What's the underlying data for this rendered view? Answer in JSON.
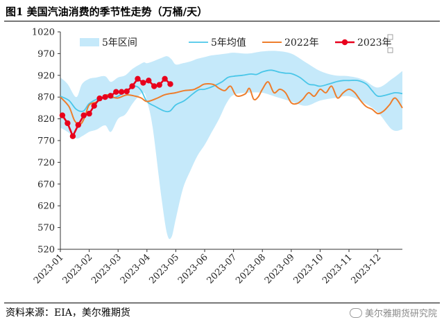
{
  "figure": {
    "title": "图1 美国汽油消费的季节性走势（万桶/天）",
    "source": "资料来源：EIA，美尔雅期货",
    "watermark": "美尔雅期货研究院"
  },
  "colors": {
    "band": "#c5e9fa",
    "avg": "#49c6e8",
    "y2022": "#ee7d2b",
    "y2023": "#e8001c",
    "axis": "#333333"
  },
  "chart_data": {
    "type": "line",
    "x_unit": "month (1 = 2023-01-01)",
    "ylim": [
      520,
      1020
    ],
    "yticks": [
      520,
      570,
      620,
      670,
      720,
      770,
      820,
      870,
      920,
      970,
      1020
    ],
    "ytick_labels": [
      "520",
      "570",
      "620",
      "670",
      "720",
      "770",
      "820",
      "870",
      "920",
      "970",
      "1020"
    ],
    "xlim": [
      1,
      12.85
    ],
    "xticks": [
      1,
      2,
      3,
      4,
      5,
      6,
      7,
      8,
      9,
      10,
      11,
      12
    ],
    "xtick_labels": [
      "2023-01",
      "2023-02",
      "2023-03",
      "2023-04",
      "2023-05",
      "2023-06",
      "2023-07",
      "2023-08",
      "2023-09",
      "2023-10",
      "2023-11",
      "2023-12"
    ],
    "legend": [
      "5年区间",
      "5年均值",
      "2022年",
      "2023年"
    ],
    "band": {
      "name": "5年区间",
      "x": [
        1.0,
        1.25,
        1.55,
        1.75,
        2.0,
        2.25,
        2.55,
        2.75,
        3.0,
        3.25,
        3.5,
        3.75,
        3.9,
        4.0,
        4.2,
        4.5,
        4.7,
        4.85,
        5.0,
        5.25,
        5.5,
        5.75,
        6.0,
        6.25,
        6.5,
        6.75,
        7.0,
        7.5,
        8.0,
        8.5,
        9.0,
        9.5,
        10.0,
        10.5,
        11.0,
        11.5,
        12.0,
        12.5,
        12.85
      ],
      "low": [
        800,
        790,
        775,
        780,
        790,
        795,
        805,
        790,
        820,
        830,
        855,
        875,
        880,
        862,
        800,
        640,
        555,
        548,
        590,
        660,
        700,
        735,
        760,
        790,
        820,
        855,
        875,
        880,
        880,
        870,
        860,
        850,
        862,
        868,
        872,
        858,
        835,
        795,
        796
      ],
      "high": [
        915,
        900,
        870,
        900,
        912,
        915,
        918,
        905,
        915,
        920,
        935,
        945,
        950,
        948,
        952,
        960,
        964,
        957,
        945,
        948,
        952,
        958,
        962,
        966,
        968,
        970,
        972,
        970,
        975,
        976,
        970,
        950,
        930,
        920,
        918,
        910,
        892,
        912,
        930
      ]
    },
    "series": [
      {
        "name": "5年均值",
        "x": [
          1.0,
          1.3,
          1.55,
          1.8,
          2.0,
          2.3,
          2.6,
          2.8,
          3.0,
          3.3,
          3.6,
          3.8,
          4.0,
          4.3,
          4.6,
          4.8,
          5.0,
          5.3,
          5.6,
          5.8,
          6.0,
          6.3,
          6.6,
          6.8,
          7.0,
          7.3,
          7.6,
          7.8,
          8.0,
          8.3,
          8.6,
          8.8,
          9.0,
          9.3,
          9.6,
          9.8,
          10.0,
          10.3,
          10.6,
          10.8,
          11.0,
          11.3,
          11.6,
          11.8,
          12.0,
          12.3,
          12.6,
          12.85
        ],
        "values": [
          872,
          862,
          842,
          838,
          855,
          866,
          870,
          868,
          872,
          885,
          895,
          885,
          860,
          848,
          838,
          838,
          852,
          862,
          878,
          887,
          888,
          895,
          905,
          915,
          918,
          920,
          923,
          922,
          928,
          932,
          927,
          925,
          924,
          915,
          900,
          898,
          895,
          900,
          906,
          908,
          908,
          908,
          900,
          885,
          872,
          875,
          880,
          878
        ]
      },
      {
        "name": "2022年",
        "x": [
          1.0,
          1.3,
          1.5,
          1.7,
          1.85,
          2.0,
          2.3,
          2.6,
          2.8,
          3.0,
          3.3,
          3.6,
          3.8,
          4.0,
          4.3,
          4.6,
          4.8,
          5.0,
          5.3,
          5.6,
          5.8,
          6.0,
          6.3,
          6.5,
          6.7,
          6.9,
          7.1,
          7.4,
          7.55,
          7.7,
          7.85,
          8.0,
          8.2,
          8.4,
          8.6,
          8.8,
          9.0,
          9.2,
          9.4,
          9.6,
          9.8,
          10.0,
          10.2,
          10.4,
          10.6,
          10.8,
          11.0,
          11.2,
          11.4,
          11.6,
          11.8,
          12.0,
          12.2,
          12.4,
          12.6,
          12.85
        ],
        "values": [
          870,
          848,
          815,
          808,
          825,
          852,
          860,
          875,
          870,
          868,
          875,
          872,
          868,
          860,
          866,
          875,
          878,
          880,
          885,
          887,
          893,
          900,
          899,
          890,
          885,
          895,
          873,
          877,
          890,
          865,
          870,
          888,
          905,
          880,
          888,
          880,
          857,
          855,
          865,
          880,
          872,
          888,
          880,
          895,
          868,
          880,
          888,
          880,
          862,
          848,
          842,
          832,
          838,
          852,
          868,
          845
        ]
      },
      {
        "name": "2023年",
        "x": [
          1.07,
          1.25,
          1.43,
          1.62,
          1.81,
          2.0,
          2.17,
          2.36,
          2.55,
          2.74,
          2.93,
          3.12,
          3.3,
          3.49,
          3.68,
          3.87,
          4.06,
          4.25,
          4.43,
          4.62,
          4.81
        ],
        "values": [
          828,
          810,
          780,
          806,
          828,
          832,
          850,
          867,
          870,
          873,
          882,
          882,
          883,
          895,
          912,
          903,
          908,
          895,
          898,
          912,
          900
        ]
      }
    ]
  }
}
